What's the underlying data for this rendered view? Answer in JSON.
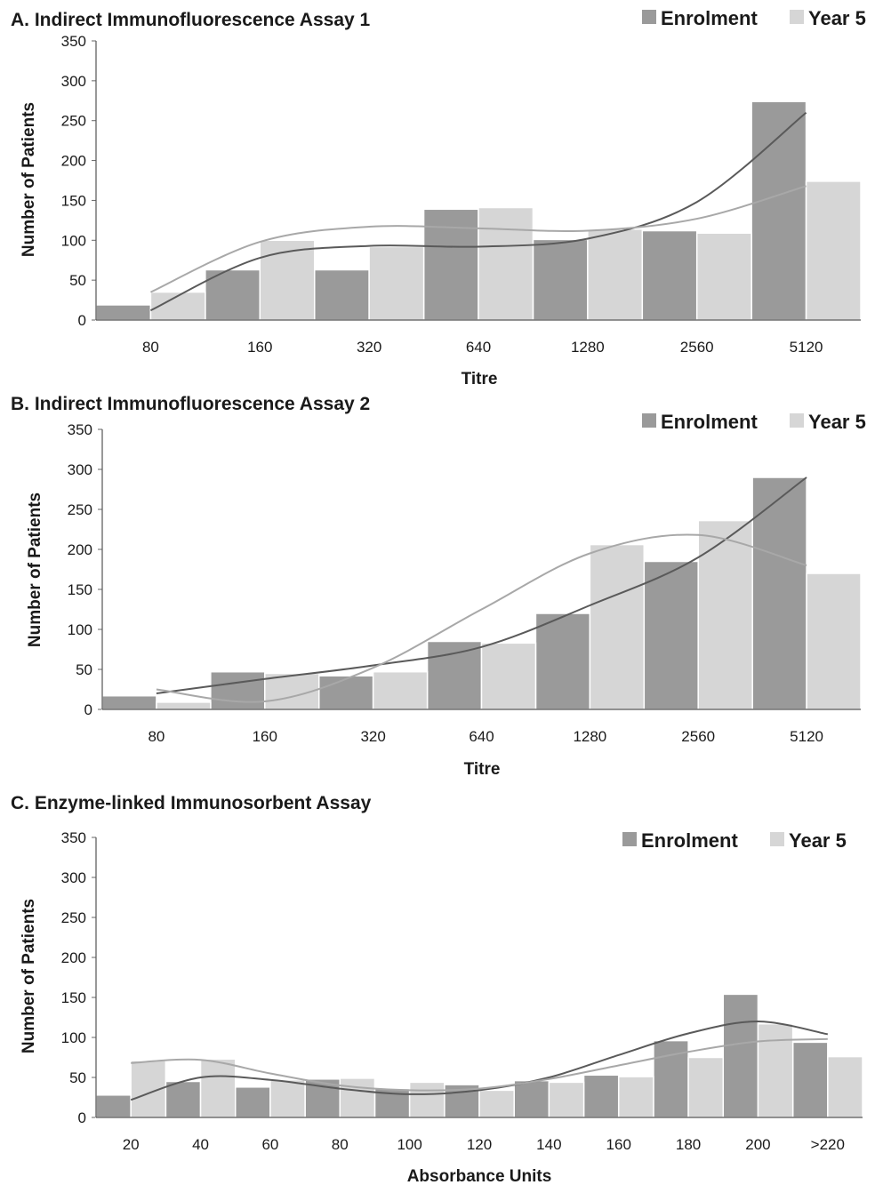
{
  "chart_data": [
    {
      "type": "bar",
      "title": "A. Indirect Immunofluorescence Assay 1",
      "xlabel": "Titre",
      "ylabel": "Number of Patients",
      "ylim": [
        0,
        350
      ],
      "yticks": [
        "0",
        "50",
        "100",
        "150",
        "200",
        "250",
        "300",
        "350"
      ],
      "categories": [
        "80",
        "160",
        "320",
        "640",
        "1280",
        "2560",
        "5120"
      ],
      "grid": false,
      "legend_position": "top-right",
      "series": [
        {
          "name": "Enrolment",
          "color": "#9a9a9a",
          "values": [
            19,
            63,
            63,
            139,
            101,
            112,
            274
          ]
        },
        {
          "name": "Year 5",
          "color": "#d6d6d6",
          "values": [
            35,
            100,
            92,
            141,
            114,
            109,
            174
          ]
        }
      ],
      "trendlines": [
        {
          "series": "Enrolment",
          "color": "#5a5a5a",
          "values": [
            12,
            78,
            93,
            92,
            102,
            148,
            260
          ]
        },
        {
          "series": "Year 5",
          "color": "#a8a8a8",
          "values": [
            35,
            98,
            117,
            115,
            112,
            127,
            168
          ]
        }
      ]
    },
    {
      "type": "bar",
      "title": "B. Indirect Immunofluorescence Assay 2",
      "xlabel": "Titre",
      "ylabel": "Number of Patients",
      "ylim": [
        0,
        350
      ],
      "yticks": [
        "0",
        "50",
        "100",
        "150",
        "200",
        "250",
        "300",
        "350"
      ],
      "categories": [
        "80",
        "160",
        "320",
        "640",
        "1280",
        "2560",
        "5120"
      ],
      "grid": false,
      "legend_position": "top-right",
      "series": [
        {
          "name": "Enrolment",
          "color": "#9a9a9a",
          "values": [
            17,
            47,
            42,
            85,
            120,
            185,
            290
          ]
        },
        {
          "name": "Year 5",
          "color": "#d6d6d6",
          "values": [
            9,
            45,
            47,
            83,
            206,
            236,
            170
          ]
        }
      ],
      "trendlines": [
        {
          "series": "Enrolment",
          "color": "#5a5a5a",
          "values": [
            20,
            38,
            55,
            78,
            130,
            190,
            290
          ]
        },
        {
          "series": "Year 5",
          "color": "#a8a8a8",
          "values": [
            25,
            10,
            52,
            125,
            195,
            218,
            180
          ]
        }
      ]
    },
    {
      "type": "bar",
      "title": "C. Enzyme-linked Immunosorbent Assay",
      "xlabel": "Absorbance Units",
      "ylabel": "Number of Patients",
      "ylim": [
        0,
        350
      ],
      "yticks": [
        "0",
        "50",
        "100",
        "150",
        "200",
        "250",
        "300",
        "350"
      ],
      "categories": [
        "20",
        "40",
        "60",
        "80",
        "100",
        "120",
        "140",
        "160",
        "180",
        "200",
        ">220"
      ],
      "grid": false,
      "legend_position": "top-right",
      "series": [
        {
          "name": "Enrolment",
          "color": "#9a9a9a",
          "values": [
            28,
            45,
            38,
            48,
            36,
            41,
            46,
            53,
            96,
            154,
            94
          ]
        },
        {
          "name": "Year 5",
          "color": "#d6d6d6",
          "values": [
            71,
            73,
            47,
            49,
            44,
            34,
            44,
            51,
            75,
            117,
            76
          ]
        }
      ],
      "trendlines": [
        {
          "series": "Enrolment",
          "color": "#5a5a5a",
          "values": [
            22,
            50,
            47,
            36,
            29,
            34,
            50,
            78,
            105,
            120,
            104
          ]
        },
        {
          "series": "Year 5",
          "color": "#a8a8a8",
          "values": [
            68,
            72,
            55,
            40,
            34,
            36,
            48,
            65,
            82,
            95,
            98
          ]
        }
      ]
    }
  ]
}
